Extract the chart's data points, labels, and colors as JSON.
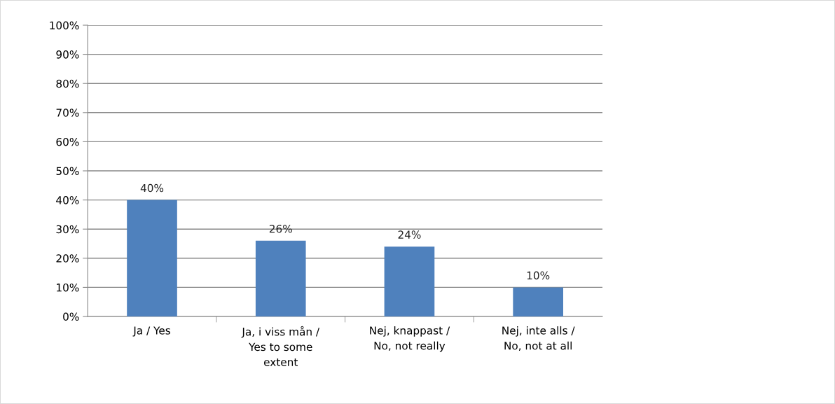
{
  "chart_data": {
    "type": "bar",
    "categories": [
      "Ja / Yes",
      "Ja, i viss mån /\nYes to some\nextent",
      "Nej, knappast /\nNo, not really",
      "Nej, inte alls /\nNo, not at all"
    ],
    "values": [
      40,
      26,
      24,
      10
    ],
    "color": "#4f81bd",
    "value_labels": [
      "40%",
      "26%",
      "24%",
      "10%"
    ],
    "ylim": [
      0,
      100
    ],
    "yticks": [
      {
        "value": 0,
        "label": "0%"
      },
      {
        "value": 10,
        "label": "10%"
      },
      {
        "value": 20,
        "label": "20%"
      },
      {
        "value": 30,
        "label": "30%"
      },
      {
        "value": 40,
        "label": "40%"
      },
      {
        "value": 50,
        "label": "50%"
      },
      {
        "value": 60,
        "label": "60%"
      },
      {
        "value": 70,
        "label": "70%"
      },
      {
        "value": 80,
        "label": "80%"
      },
      {
        "value": 90,
        "label": "90%"
      },
      {
        "value": 100,
        "label": "100%"
      }
    ],
    "grid": "y",
    "legend": false
  }
}
